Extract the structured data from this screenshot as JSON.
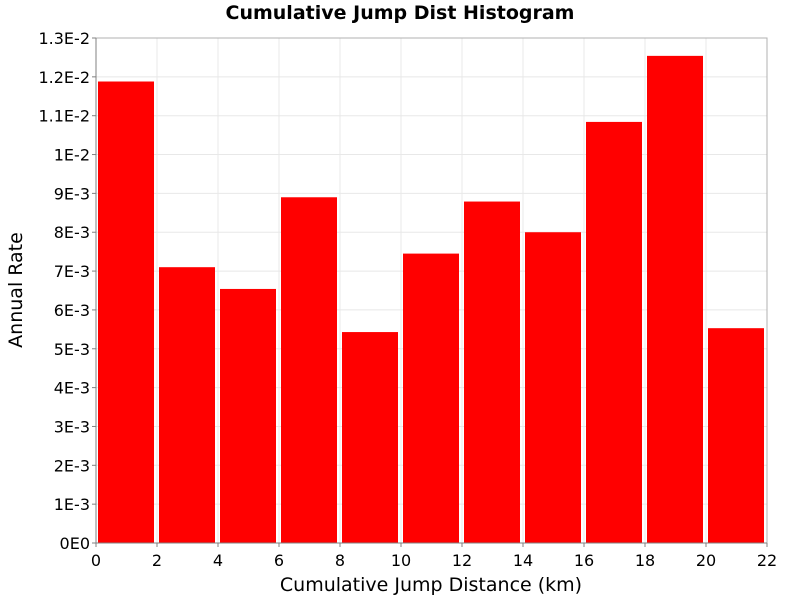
{
  "chart_data": {
    "type": "bar",
    "title": "Cumulative Jump Dist Histogram",
    "xlabel": "Cumulative Jump Distance (km)",
    "ylabel": "Annual Rate",
    "bins": [
      {
        "x0": 0,
        "x1": 2,
        "value": 0.01188
      },
      {
        "x0": 2,
        "x1": 4,
        "value": 0.0071
      },
      {
        "x0": 4,
        "x1": 6,
        "value": 0.00654
      },
      {
        "x0": 6,
        "x1": 8,
        "value": 0.0089
      },
      {
        "x0": 8,
        "x1": 10,
        "value": 0.00543
      },
      {
        "x0": 10,
        "x1": 12,
        "value": 0.00745
      },
      {
        "x0": 12,
        "x1": 14,
        "value": 0.00879
      },
      {
        "x0": 14,
        "x1": 16,
        "value": 0.008
      },
      {
        "x0": 16,
        "x1": 18,
        "value": 0.01084
      },
      {
        "x0": 18,
        "x1": 20,
        "value": 0.01254
      },
      {
        "x0": 20,
        "x1": 22,
        "value": 0.00553
      }
    ],
    "xlim": [
      0,
      22
    ],
    "ylim": [
      0,
      0.013
    ],
    "xticks": [
      0,
      2,
      4,
      6,
      8,
      10,
      12,
      14,
      16,
      18,
      20,
      22
    ],
    "xtick_labels": [
      "0",
      "2",
      "4",
      "6",
      "8",
      "10",
      "12",
      "14",
      "16",
      "18",
      "20",
      "22"
    ],
    "yticks": [
      0,
      0.001,
      0.002,
      0.003,
      0.004,
      0.005,
      0.006,
      0.007,
      0.008,
      0.009,
      0.01,
      0.011,
      0.012,
      0.013
    ],
    "ytick_labels": [
      "0E0",
      "1E-3",
      "2E-3",
      "3E-3",
      "4E-3",
      "5E-3",
      "6E-3",
      "7E-3",
      "8E-3",
      "9E-3",
      "1E-2",
      "1.1E-2",
      "1.2E-2",
      "1.3E-2"
    ],
    "grid": true,
    "legend": "none",
    "bar_color": "#ff0000",
    "grid_color": "#e8e8e8"
  }
}
